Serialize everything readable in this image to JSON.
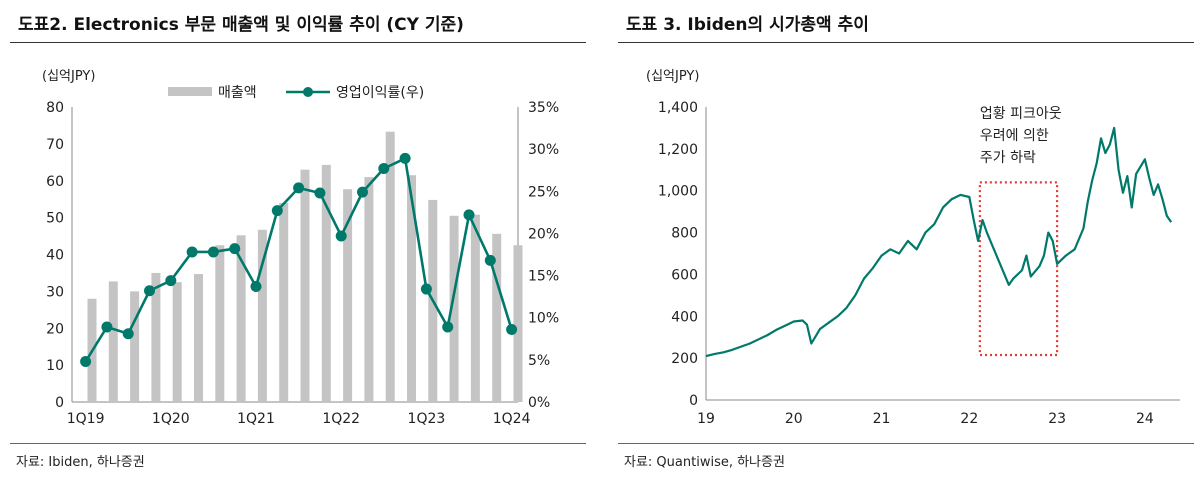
{
  "left": {
    "title": "도표2. Electronics 부문 매출액 및 이익률 추이 (CY 기준)",
    "source": "자료: Ibiden, 하나증권",
    "chart_data": {
      "type": "bar+line",
      "unit_label": "(십억JPY)",
      "categories": [
        "1Q19",
        "2Q19",
        "3Q19",
        "4Q19",
        "1Q20",
        "2Q20",
        "3Q20",
        "4Q20",
        "1Q21",
        "2Q21",
        "3Q21",
        "4Q21",
        "1Q22",
        "2Q22",
        "3Q22",
        "4Q22",
        "1Q23",
        "2Q23",
        "3Q23",
        "4Q23",
        "1Q24"
      ],
      "x_tick_labels": [
        "1Q19",
        "1Q20",
        "1Q21",
        "1Q22",
        "1Q23",
        "1Q24"
      ],
      "y_left": {
        "min": 0,
        "max": 80,
        "ticks": [
          "0",
          "10",
          "20",
          "30",
          "40",
          "50",
          "60",
          "70",
          "80"
        ]
      },
      "y_right": {
        "min": 0,
        "max": 35,
        "ticks": [
          "0%",
          "5%",
          "10%",
          "15%",
          "20%",
          "25%",
          "30%",
          "35%"
        ]
      },
      "series": [
        {
          "name": "매출액",
          "kind": "bar",
          "axis": "left",
          "color": "#c4c4c4",
          "values": [
            28,
            32.7,
            30,
            35,
            32.5,
            34.7,
            42.5,
            45.2,
            46.7,
            54,
            63,
            64.3,
            57.7,
            61,
            73.3,
            61.5,
            54.8,
            50.5,
            50.8,
            45.6,
            42.5
          ]
        },
        {
          "name": "영업이익률(우)",
          "kind": "line",
          "axis": "right",
          "color": "#00796b",
          "values": [
            4.8,
            8.9,
            8.1,
            13.2,
            14.4,
            17.8,
            17.8,
            18.2,
            13.7,
            22.7,
            25.4,
            24.8,
            19.7,
            24.9,
            27.7,
            28.9,
            13.4,
            8.9,
            22.2,
            16.8,
            8.6
          ]
        }
      ]
    }
  },
  "right": {
    "title": "도표 3. Ibiden의 시가총액 추이",
    "source": "자료: Quantiwise, 하나증권",
    "chart_data": {
      "type": "line",
      "unit_label": "(십억JPY)",
      "x_range": [
        2019,
        2024.4
      ],
      "x_ticks": [
        "19",
        "20",
        "21",
        "22",
        "23",
        "24"
      ],
      "y_range": [
        0,
        1400
      ],
      "y_ticks": [
        "0",
        "200",
        "400",
        "600",
        "800",
        "1,000",
        "1,200",
        "1,400"
      ],
      "series": [
        {
          "color": "#00796b",
          "points": [
            [
              2019.0,
              210
            ],
            [
              2019.1,
              220
            ],
            [
              2019.2,
              228
            ],
            [
              2019.3,
              240
            ],
            [
              2019.4,
              255
            ],
            [
              2019.5,
              270
            ],
            [
              2019.6,
              290
            ],
            [
              2019.7,
              310
            ],
            [
              2019.8,
              335
            ],
            [
              2019.9,
              355
            ],
            [
              2020.0,
              375
            ],
            [
              2020.1,
              380
            ],
            [
              2020.15,
              360
            ],
            [
              2020.2,
              270
            ],
            [
              2020.25,
              305
            ],
            [
              2020.3,
              340
            ],
            [
              2020.4,
              370
            ],
            [
              2020.5,
              400
            ],
            [
              2020.6,
              440
            ],
            [
              2020.7,
              500
            ],
            [
              2020.8,
              580
            ],
            [
              2020.9,
              630
            ],
            [
              2021.0,
              690
            ],
            [
              2021.1,
              720
            ],
            [
              2021.2,
              700
            ],
            [
              2021.3,
              760
            ],
            [
              2021.4,
              720
            ],
            [
              2021.5,
              800
            ],
            [
              2021.6,
              840
            ],
            [
              2021.7,
              920
            ],
            [
              2021.8,
              960
            ],
            [
              2021.9,
              980
            ],
            [
              2022.0,
              970
            ],
            [
              2022.05,
              860
            ],
            [
              2022.1,
              760
            ],
            [
              2022.15,
              860
            ],
            [
              2022.2,
              800
            ],
            [
              2022.3,
              700
            ],
            [
              2022.4,
              600
            ],
            [
              2022.45,
              550
            ],
            [
              2022.5,
              580
            ],
            [
              2022.6,
              620
            ],
            [
              2022.65,
              690
            ],
            [
              2022.7,
              590
            ],
            [
              2022.8,
              640
            ],
            [
              2022.85,
              690
            ],
            [
              2022.9,
              800
            ],
            [
              2022.95,
              760
            ],
            [
              2023.0,
              650
            ],
            [
              2023.1,
              690
            ],
            [
              2023.2,
              720
            ],
            [
              2023.3,
              820
            ],
            [
              2023.35,
              950
            ],
            [
              2023.4,
              1050
            ],
            [
              2023.45,
              1130
            ],
            [
              2023.5,
              1250
            ],
            [
              2023.55,
              1180
            ],
            [
              2023.6,
              1220
            ],
            [
              2023.65,
              1300
            ],
            [
              2023.7,
              1100
            ],
            [
              2023.75,
              990
            ],
            [
              2023.8,
              1070
            ],
            [
              2023.85,
              920
            ],
            [
              2023.9,
              1080
            ],
            [
              2024.0,
              1150
            ],
            [
              2024.05,
              1060
            ],
            [
              2024.1,
              980
            ],
            [
              2024.15,
              1030
            ],
            [
              2024.2,
              960
            ],
            [
              2024.25,
              880
            ],
            [
              2024.3,
              850
            ]
          ]
        }
      ],
      "annotation": "업황 피크아웃\n우려에 의한\n주가 하락",
      "highlight_box": {
        "x_range": [
          2022.12,
          2023.0
        ],
        "y_range": [
          215,
          1040
        ],
        "color": "#e53935"
      }
    }
  }
}
